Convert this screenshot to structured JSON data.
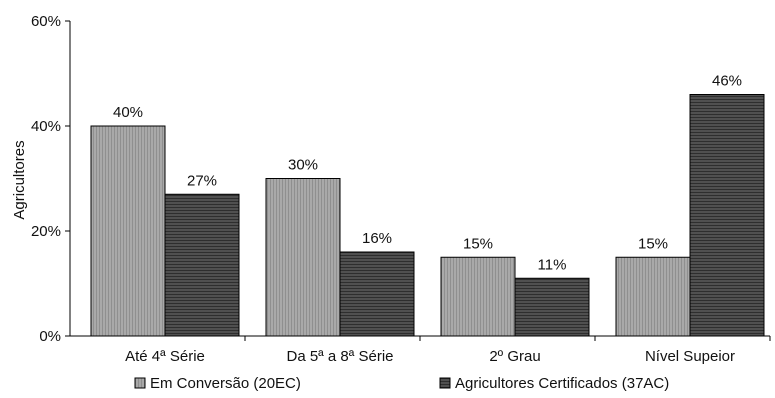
{
  "chart_data": {
    "type": "bar",
    "ylabel": "Agricultores",
    "xlabel": "",
    "ylim": [
      0,
      60
    ],
    "yticks": [
      0,
      20,
      40,
      60
    ],
    "ytick_format": "percent",
    "grid": false,
    "legend_position": "bottom",
    "categories": [
      "Até 4ª Série",
      "Da 5ª a 8ª Série",
      "2º Grau",
      "Nível Supeior"
    ],
    "series": [
      {
        "name": "Em Conversão (20EC)",
        "values": [
          40,
          30,
          15,
          15
        ],
        "color": "#a6a6a6"
      },
      {
        "name": "Agricultores Certificados (37AC)",
        "values": [
          27,
          16,
          11,
          46
        ],
        "color": "#4a4a4a"
      }
    ]
  }
}
